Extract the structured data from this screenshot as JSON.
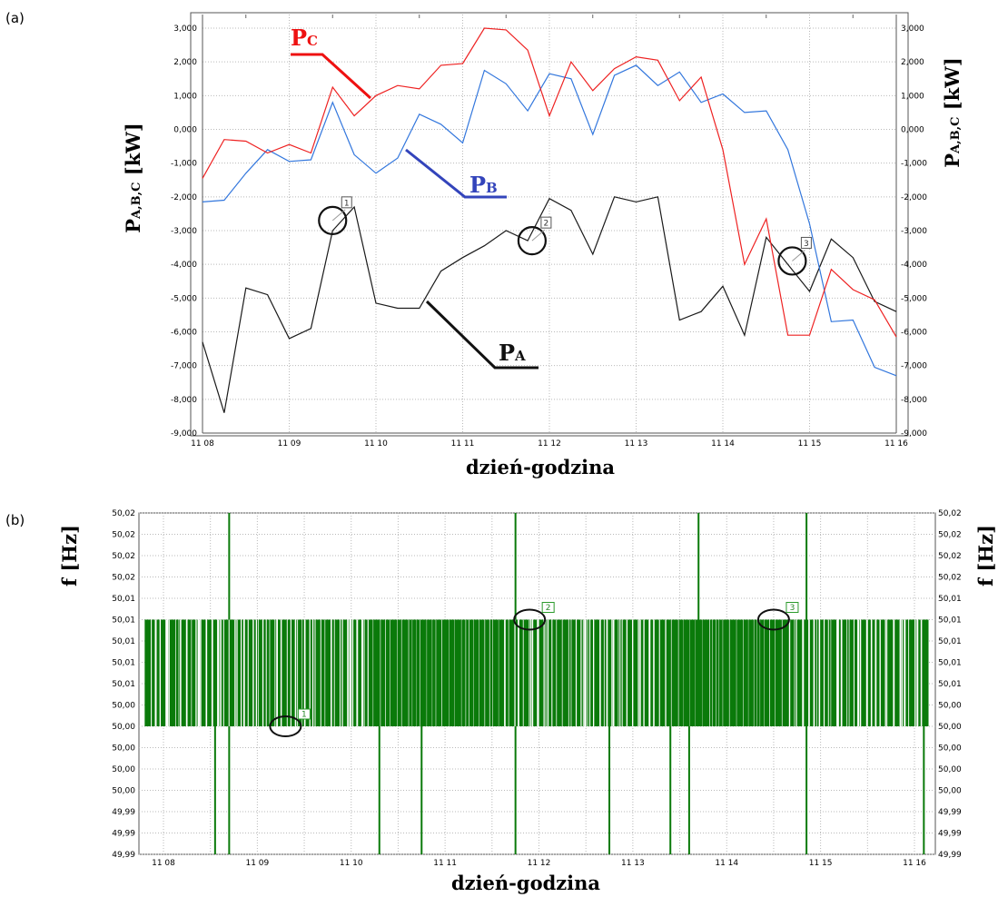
{
  "chart_data": [
    {
      "panel": "(a)",
      "type": "line",
      "xlabel": "dzień-godzina",
      "ylabel": "P",
      "ylabel_sub": "A,B,C",
      "ylabel_unit": " [kW]",
      "ylim": [
        -9000,
        3000
      ],
      "y_ticks": [
        3000,
        2000,
        1000,
        0,
        -1000,
        -2000,
        -3000,
        -4000,
        -5000,
        -6000,
        -7000,
        -8000,
        -9000
      ],
      "y_tick_labels": [
        "3,000",
        "2,000",
        "1,000",
        "0,000",
        "-1,000",
        "-2,000",
        "-3,000",
        "-4,000",
        "-5,000",
        "-6,000",
        "-7,000",
        "-8,000",
        "-9,000"
      ],
      "x_ticks": [
        8,
        9,
        10,
        11,
        12,
        13,
        14,
        15,
        16
      ],
      "x_tick_labels": [
        "11 08",
        "11 09",
        "11 10",
        "11 11",
        "11 12",
        "11 13",
        "11 14",
        "11 15",
        "11 16"
      ],
      "grid": true,
      "series": [
        {
          "name": "P",
          "sub": "A",
          "color": "#1a1a1a",
          "x": [
            8.0,
            8.25,
            8.5,
            8.75,
            9.0,
            9.25,
            9.5,
            9.75,
            10.0,
            10.25,
            10.5,
            10.75,
            11.0,
            11.25,
            11.5,
            11.75,
            12.0,
            12.25,
            12.5,
            12.75,
            13.0,
            13.25,
            13.5,
            13.75,
            14.0,
            14.25,
            14.5,
            14.75,
            15.0,
            15.25,
            15.5,
            15.75,
            16.0
          ],
          "y": [
            -6300,
            -8400,
            -4700,
            -4900,
            -6200,
            -5900,
            -3000,
            -2300,
            -5150,
            -5300,
            -5300,
            -4200,
            -3800,
            -3450,
            -3000,
            -3300,
            -2050,
            -2400,
            -3700,
            -2000,
            -2150,
            -2000,
            -5650,
            -5400,
            -4650,
            -6100,
            -3200,
            -4000,
            -4800,
            -3250,
            -3800,
            -5100,
            -5400
          ]
        },
        {
          "name": "P",
          "sub": "B",
          "color": "#3377dd",
          "x": [
            8.0,
            8.25,
            8.5,
            8.75,
            9.0,
            9.25,
            9.5,
            9.75,
            10.0,
            10.25,
            10.5,
            10.75,
            11.0,
            11.25,
            11.5,
            11.75,
            12.0,
            12.25,
            12.5,
            12.75,
            13.0,
            13.25,
            13.5,
            13.75,
            14.0,
            14.25,
            14.5,
            14.75,
            15.0,
            15.25,
            15.5,
            15.75,
            16.0
          ],
          "y": [
            -2150,
            -2100,
            -1300,
            -600,
            -950,
            -900,
            800,
            -750,
            -1300,
            -850,
            450,
            150,
            -400,
            1750,
            1350,
            550,
            1650,
            1500,
            -150,
            1600,
            1900,
            1300,
            1700,
            800,
            1050,
            500,
            550,
            -600,
            -2800,
            -5700,
            -5650,
            -7050,
            -7300
          ]
        },
        {
          "name": "P",
          "sub": "C",
          "color": "#ee2222",
          "x": [
            8.0,
            8.25,
            8.5,
            8.75,
            9.0,
            9.25,
            9.5,
            9.75,
            10.0,
            10.25,
            10.5,
            10.75,
            11.0,
            11.25,
            11.5,
            11.75,
            12.0,
            12.25,
            12.5,
            12.75,
            13.0,
            13.25,
            13.5,
            13.75,
            14.0,
            14.25,
            14.5,
            14.75,
            15.0,
            15.25,
            15.5,
            15.75,
            16.0
          ],
          "y": [
            -1450,
            -300,
            -350,
            -700,
            -450,
            -700,
            1250,
            400,
            1000,
            1300,
            1200,
            1900,
            1950,
            3000,
            2950,
            2350,
            400,
            2000,
            1150,
            1800,
            2150,
            2050,
            850,
            1550,
            -600,
            -4000,
            -2650,
            -6100,
            -6100,
            -4150,
            -4750,
            -5050,
            -6150
          ]
        }
      ],
      "markers": [
        {
          "label": "1",
          "x": 9.5,
          "y": -2700
        },
        {
          "label": "2",
          "x": 11.8,
          "y": -3300
        },
        {
          "label": "3",
          "x": 14.8,
          "y": -3900
        }
      ]
    },
    {
      "panel": "(b)",
      "type": "line",
      "xlabel": "dzień-godzina",
      "ylabel": "f [Hz]",
      "y_tick_labels": [
        "50,02",
        "50,02",
        "50,02",
        "50,02",
        "50,01",
        "50,01",
        "50,01",
        "50,01",
        "50,01",
        "50,00",
        "50,00",
        "50,00",
        "50,00",
        "50,00",
        "49,99",
        "49,99",
        "49,99"
      ],
      "x_ticks": [
        8,
        9,
        10,
        11,
        12,
        13,
        14,
        15,
        16
      ],
      "x_tick_labels": [
        "11 08",
        "11 09",
        "11 10",
        "11 11",
        "11 12",
        "11 13",
        "11 14",
        "11 15",
        "11 16"
      ],
      "grid": true,
      "series": [
        {
          "name": "",
          "color": "#0a7a0a",
          "band_values": [
            "50,00",
            "50,01"
          ],
          "spike_up_x": [
            8.7,
            11.75,
            13.7,
            14.85
          ],
          "spike_down_x": [
            8.55,
            8.7,
            10.3,
            10.75,
            11.75,
            12.75,
            13.4,
            13.6,
            14.85,
            16.1
          ]
        }
      ],
      "markers": [
        {
          "label": "1",
          "x": 9.3,
          "value": "50,00"
        },
        {
          "label": "2",
          "x": 11.9,
          "value": "50,01"
        },
        {
          "label": "3",
          "x": 14.5,
          "value": "50,01"
        }
      ]
    }
  ]
}
